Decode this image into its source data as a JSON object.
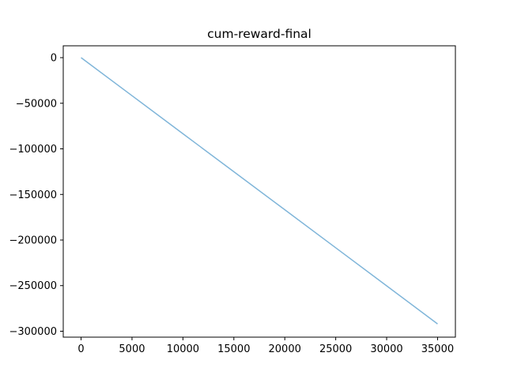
{
  "chart_data": {
    "type": "line",
    "title": "cum-reward-final",
    "xlabel": "",
    "ylabel": "",
    "xlim": [
      -1750,
      36750
    ],
    "ylim": [
      -306500,
      13000
    ],
    "grid": false,
    "legend": "none",
    "x_ticks": [
      0,
      5000,
      10000,
      15000,
      20000,
      25000,
      30000,
      35000
    ],
    "x_tick_labels": [
      "0",
      "5000",
      "10000",
      "15000",
      "20000",
      "25000",
      "30000",
      "35000"
    ],
    "y_ticks": [
      0,
      -50000,
      -100000,
      -150000,
      -200000,
      -250000,
      -300000
    ],
    "y_tick_labels": [
      "0",
      "−50000",
      "−100000",
      "−150000",
      "−200000",
      "−250000",
      "−300000"
    ],
    "series": [
      {
        "color": "#7fb5d9",
        "x": [
          0,
          5000,
          10000,
          15000,
          20000,
          25000,
          30000,
          35000
        ],
        "y": [
          0,
          -41700,
          -83400,
          -125100,
          -166800,
          -208500,
          -250200,
          -292000
        ]
      }
    ]
  }
}
